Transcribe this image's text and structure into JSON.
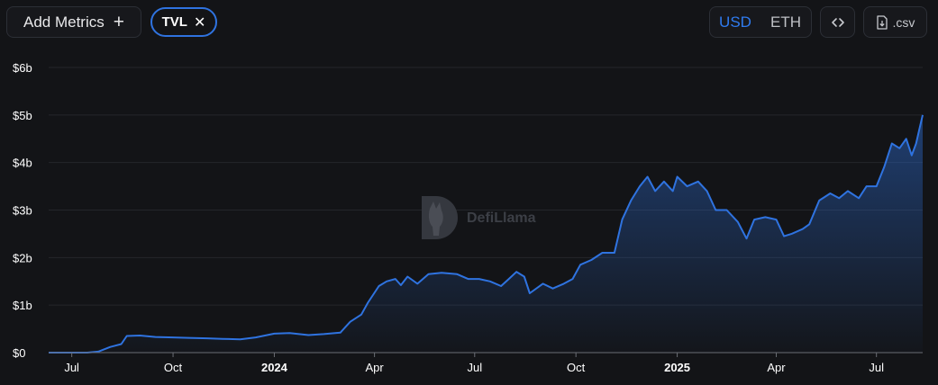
{
  "toolbar": {
    "add_metrics_label": "Add Metrics",
    "add_icon": "plus-icon",
    "metric_chip": {
      "label": "TVL",
      "remove_icon": "close-icon"
    },
    "currency_options": [
      "USD",
      "ETH"
    ],
    "currency_selected": "USD",
    "embed_icon": "code-icon",
    "csv_label": ".csv",
    "csv_icon": "download-file-icon"
  },
  "watermark": {
    "text": "DefiLlama",
    "logo": "llama-logo"
  },
  "colors": {
    "line": "#2f73e0",
    "background": "#131417",
    "accent": "#2f7bf0"
  },
  "chart_data": {
    "type": "area",
    "series": [
      {
        "name": "TVL"
      }
    ],
    "y_ticks": [
      {
        "label": "$6b",
        "value": 6
      },
      {
        "label": "$5b",
        "value": 5
      },
      {
        "label": "$4b",
        "value": 4
      },
      {
        "label": "$3b",
        "value": 3
      },
      {
        "label": "$2b",
        "value": 2
      },
      {
        "label": "$1b",
        "value": 1
      },
      {
        "label": "$0",
        "value": 0
      }
    ],
    "ylim": [
      0,
      6
    ],
    "x_ticks": [
      {
        "label": "Jul",
        "date": "2023-07-01",
        "bold": false
      },
      {
        "label": "Oct",
        "date": "2023-10-01",
        "bold": false
      },
      {
        "label": "2024",
        "date": "2024-01-01",
        "bold": true
      },
      {
        "label": "Apr",
        "date": "2024-04-01",
        "bold": false
      },
      {
        "label": "Jul",
        "date": "2024-07-01",
        "bold": false
      },
      {
        "label": "Oct",
        "date": "2024-10-01",
        "bold": false
      },
      {
        "label": "2025",
        "date": "2025-01-01",
        "bold": true
      },
      {
        "label": "Apr",
        "date": "2025-04-01",
        "bold": false
      },
      {
        "label": "Jul",
        "date": "2025-07-01",
        "bold": false
      }
    ],
    "xlim": [
      "2023-06-10",
      "2025-08-12"
    ],
    "grid": true,
    "legend": "none",
    "points": [
      [
        "2023-06-10",
        0.0
      ],
      [
        "2023-07-15",
        0.0
      ],
      [
        "2023-07-25",
        0.02
      ],
      [
        "2023-08-05",
        0.12
      ],
      [
        "2023-08-15",
        0.18
      ],
      [
        "2023-08-20",
        0.35
      ],
      [
        "2023-09-01",
        0.36
      ],
      [
        "2023-09-15",
        0.33
      ],
      [
        "2023-10-01",
        0.32
      ],
      [
        "2023-10-15",
        0.31
      ],
      [
        "2023-11-01",
        0.3
      ],
      [
        "2023-11-15",
        0.29
      ],
      [
        "2023-12-01",
        0.28
      ],
      [
        "2023-12-15",
        0.32
      ],
      [
        "2024-01-01",
        0.4
      ],
      [
        "2024-01-15",
        0.41
      ],
      [
        "2024-02-01",
        0.37
      ],
      [
        "2024-02-15",
        0.39
      ],
      [
        "2024-03-01",
        0.42
      ],
      [
        "2024-03-10",
        0.65
      ],
      [
        "2024-03-20",
        0.8
      ],
      [
        "2024-03-26",
        1.05
      ],
      [
        "2024-04-05",
        1.4
      ],
      [
        "2024-04-12",
        1.5
      ],
      [
        "2024-04-20",
        1.55
      ],
      [
        "2024-04-25",
        1.42
      ],
      [
        "2024-05-01",
        1.6
      ],
      [
        "2024-05-10",
        1.45
      ],
      [
        "2024-05-20",
        1.65
      ],
      [
        "2024-06-01",
        1.68
      ],
      [
        "2024-06-15",
        1.65
      ],
      [
        "2024-06-25",
        1.55
      ],
      [
        "2024-07-05",
        1.55
      ],
      [
        "2024-07-15",
        1.5
      ],
      [
        "2024-07-25",
        1.4
      ],
      [
        "2024-08-01",
        1.55
      ],
      [
        "2024-08-08",
        1.7
      ],
      [
        "2024-08-15",
        1.6
      ],
      [
        "2024-08-20",
        1.25
      ],
      [
        "2024-09-01",
        1.45
      ],
      [
        "2024-09-10",
        1.35
      ],
      [
        "2024-09-20",
        1.45
      ],
      [
        "2024-09-28",
        1.55
      ],
      [
        "2024-10-05",
        1.85
      ],
      [
        "2024-10-15",
        1.95
      ],
      [
        "2024-10-25",
        2.1
      ],
      [
        "2024-11-05",
        2.1
      ],
      [
        "2024-11-12",
        2.8
      ],
      [
        "2024-11-20",
        3.2
      ],
      [
        "2024-11-28",
        3.5
      ],
      [
        "2024-12-05",
        3.7
      ],
      [
        "2024-12-12",
        3.4
      ],
      [
        "2024-12-20",
        3.6
      ],
      [
        "2024-12-28",
        3.4
      ],
      [
        "2025-01-01",
        3.7
      ],
      [
        "2025-01-10",
        3.5
      ],
      [
        "2025-01-20",
        3.6
      ],
      [
        "2025-01-28",
        3.4
      ],
      [
        "2025-02-05",
        3.0
      ],
      [
        "2025-02-15",
        3.0
      ],
      [
        "2025-02-25",
        2.75
      ],
      [
        "2025-03-05",
        2.4
      ],
      [
        "2025-03-12",
        2.8
      ],
      [
        "2025-03-22",
        2.85
      ],
      [
        "2025-04-01",
        2.8
      ],
      [
        "2025-04-08",
        2.45
      ],
      [
        "2025-04-15",
        2.5
      ],
      [
        "2025-04-25",
        2.6
      ],
      [
        "2025-05-01",
        2.7
      ],
      [
        "2025-05-10",
        3.2
      ],
      [
        "2025-05-20",
        3.35
      ],
      [
        "2025-05-28",
        3.25
      ],
      [
        "2025-06-05",
        3.4
      ],
      [
        "2025-06-15",
        3.25
      ],
      [
        "2025-06-22",
        3.5
      ],
      [
        "2025-07-01",
        3.5
      ],
      [
        "2025-07-08",
        3.9
      ],
      [
        "2025-07-15",
        4.4
      ],
      [
        "2025-07-22",
        4.3
      ],
      [
        "2025-07-28",
        4.5
      ],
      [
        "2025-08-02",
        4.15
      ],
      [
        "2025-08-06",
        4.4
      ],
      [
        "2025-08-09",
        4.7
      ],
      [
        "2025-08-12",
        5.0
      ]
    ]
  }
}
